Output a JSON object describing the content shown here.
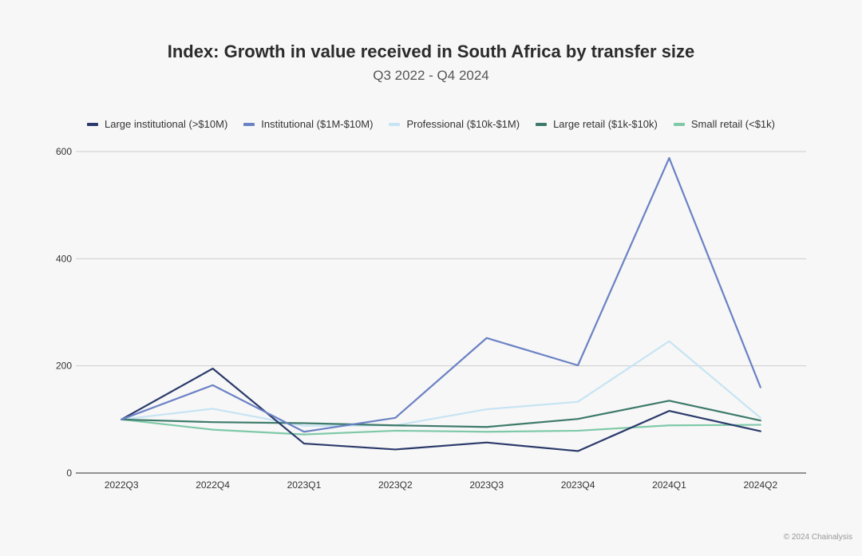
{
  "chart_data": {
    "type": "line",
    "title": "Index: Growth in value received in South Africa by transfer size",
    "subtitle": "Q3 2022 - Q4 2024",
    "categories": [
      "2022Q3",
      "2022Q4",
      "2023Q1",
      "2023Q2",
      "2023Q3",
      "2023Q4",
      "2024Q1",
      "2024Q2"
    ],
    "ylim": [
      0,
      600
    ],
    "yticks": [
      0,
      200,
      400,
      600
    ],
    "grid": true,
    "legend_position": "top",
    "series": [
      {
        "name": "Large institutional (>$10M)",
        "color": "#2b3a6b",
        "values": [
          100,
          195,
          55,
          44,
          57,
          41,
          116,
          78
        ]
      },
      {
        "name": "Institutional ($1M-$10M)",
        "color": "#6b82c4",
        "values": [
          100,
          164,
          77,
          103,
          252,
          201,
          588,
          160
        ]
      },
      {
        "name": "Professional ($10k-$1M)",
        "color": "#c7e4f3",
        "values": [
          100,
          120,
          88,
          89,
          119,
          133,
          246,
          103
        ]
      },
      {
        "name": "Large retail ($1k-$10k)",
        "color": "#3d7a6a",
        "values": [
          100,
          95,
          93,
          89,
          86,
          101,
          135,
          98
        ]
      },
      {
        "name": "Small retail (<$1k)",
        "color": "#7fc9a8",
        "values": [
          100,
          81,
          72,
          79,
          77,
          79,
          89,
          90
        ]
      }
    ]
  },
  "footer": {
    "copyright": "© 2024 Chainalysis"
  }
}
